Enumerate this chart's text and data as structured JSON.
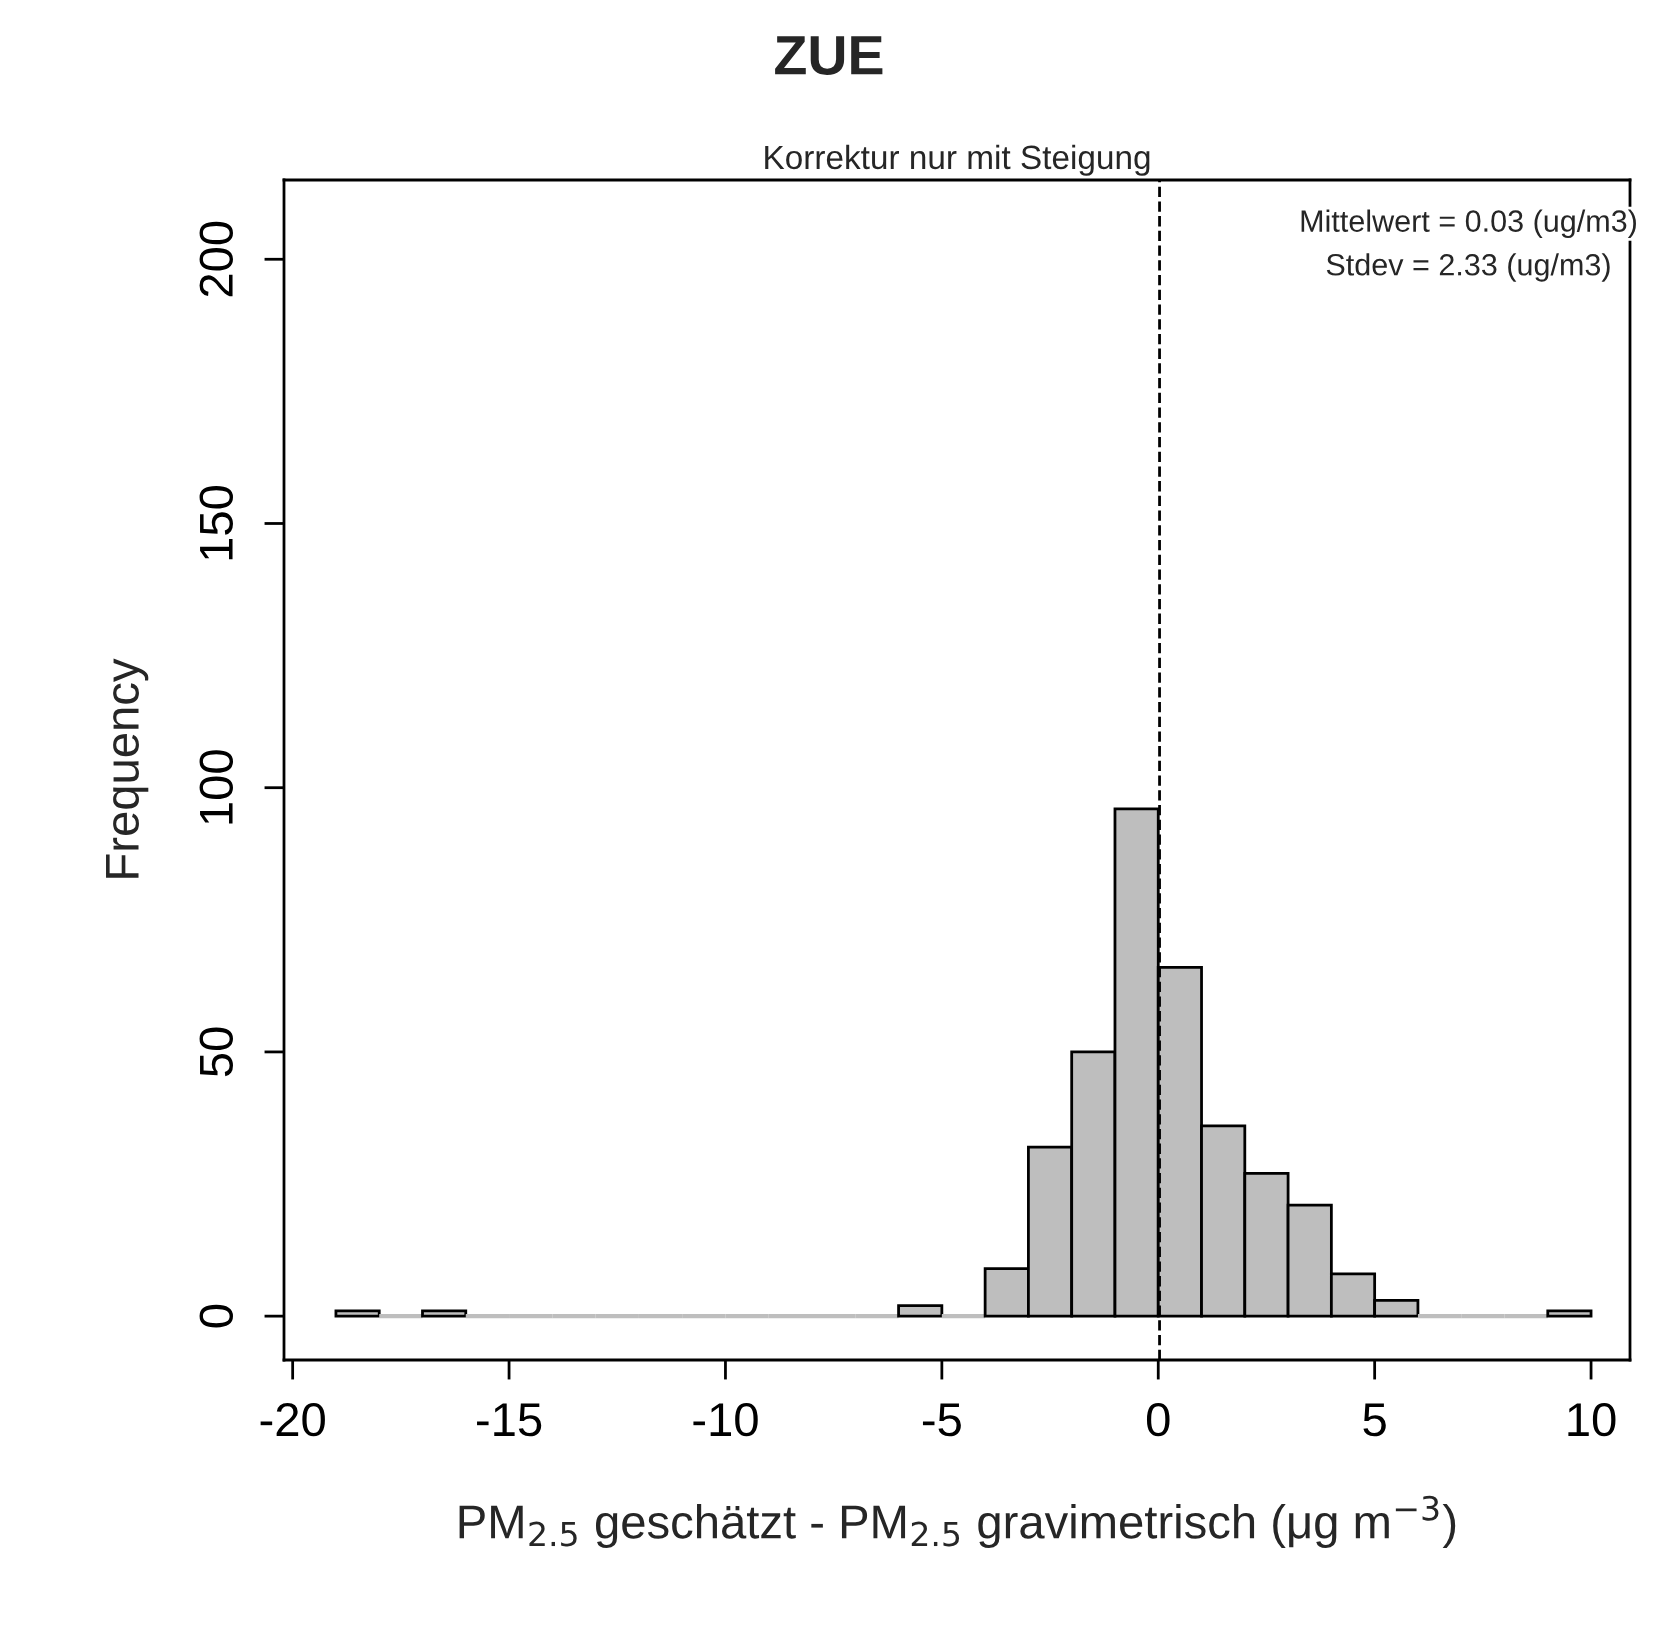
{
  "chart_data": {
    "type": "histogram",
    "title": "ZUE",
    "subtitle": "Korrektur nur mit Steigung",
    "xlabel": "PM$_{2.5}$ geschätzt - PM$_{2.5}$ gravimetrisch (μg m$^{−3}$)",
    "ylabel": "Frequency",
    "bins": [
      -19,
      -18,
      -17,
      -16,
      -15,
      -14,
      -13,
      -12,
      -11,
      -10,
      -9,
      -8,
      -7,
      -6,
      -5,
      -4,
      -3,
      -2,
      -1,
      0,
      1,
      2,
      3,
      4,
      5,
      6,
      7,
      8,
      9,
      10
    ],
    "values": [
      1,
      0,
      1,
      0,
      0,
      0,
      0,
      0,
      0,
      0,
      0,
      0,
      0,
      2,
      0,
      9,
      32,
      50,
      96,
      66,
      36,
      27,
      21,
      8,
      3,
      0,
      0,
      0,
      1
    ],
    "color": "#bebebe",
    "xlim": [
      -20.2,
      10.9
    ],
    "xticks": [
      -20,
      -15,
      -10,
      -5,
      0,
      5,
      10
    ],
    "ylim": [
      -8.3,
      215
    ],
    "yticks": [
      0,
      50,
      100,
      150,
      200
    ],
    "ref_lines": [
      {
        "axis": "x",
        "value": 0.03,
        "line_style": "dashed",
        "color": "#000000"
      }
    ],
    "annotations": [
      "Mittelwert = 0.03 (ug/m3)",
      "Stdev = 2.33 (ug/m3)"
    ],
    "grid": false
  }
}
